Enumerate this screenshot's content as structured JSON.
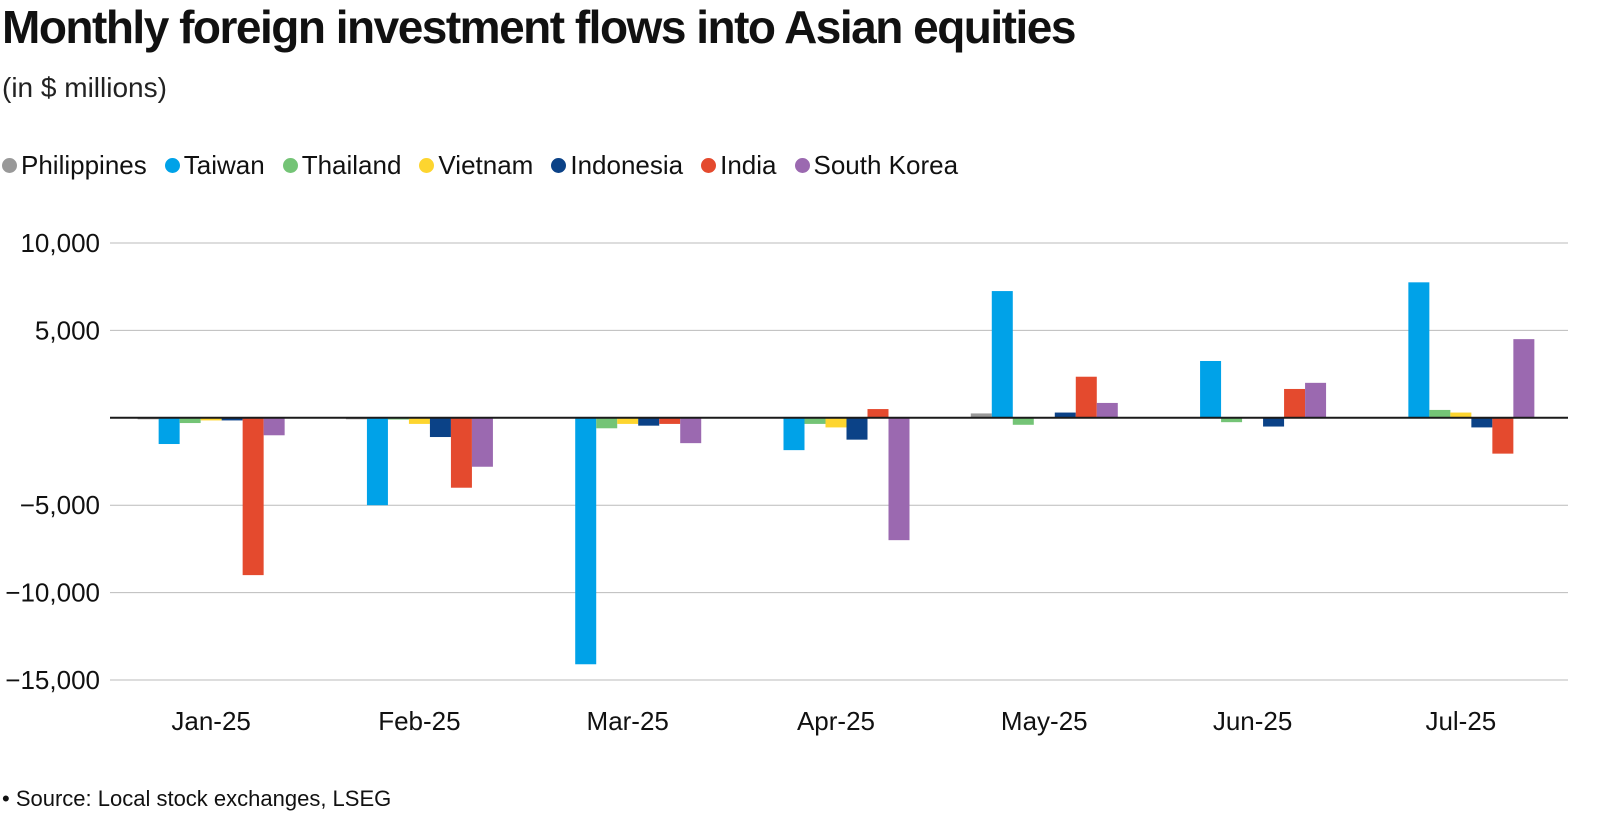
{
  "chart_data": {
    "type": "bar",
    "title": "Monthly foreign investment flows into Asian equities",
    "subtitle": "(in $ millions)",
    "categories": [
      "Jan-25",
      "Feb-25",
      "Mar-25",
      "Apr-25",
      "May-25",
      "Jun-25",
      "Jul-25"
    ],
    "ylim": [
      -15000,
      10000
    ],
    "yticks": [
      10000,
      5000,
      0,
      -5000,
      -10000,
      -15000
    ],
    "ytick_labels": [
      "10,000",
      "5,000",
      "",
      "−5,000",
      "−10,000",
      "−15,000"
    ],
    "grid": true,
    "legend_position": "top-left",
    "series": [
      {
        "name": "Philippines",
        "color": "#999999",
        "values": [
          -50,
          -50,
          0,
          0,
          250,
          0,
          0
        ]
      },
      {
        "name": "Taiwan",
        "color": "#00a2e8",
        "values": [
          -1500,
          -5000,
          -14100,
          -1850,
          7250,
          3250,
          7750
        ]
      },
      {
        "name": "Thailand",
        "color": "#74c476",
        "values": [
          -300,
          -100,
          -600,
          -350,
          -400,
          -250,
          450
        ]
      },
      {
        "name": "Vietnam",
        "color": "#fdd52f",
        "values": [
          -150,
          -350,
          -350,
          -550,
          0,
          0,
          300
        ]
      },
      {
        "name": "Indonesia",
        "color": "#0b4287",
        "values": [
          -150,
          -1100,
          -450,
          -1250,
          300,
          -500,
          -550
        ]
      },
      {
        "name": "India",
        "color": "#e44a2e",
        "values": [
          -9000,
          -4000,
          -350,
          500,
          2350,
          1650,
          -2050
        ]
      },
      {
        "name": "South Korea",
        "color": "#9b69b0",
        "values": [
          -1000,
          -2800,
          -1450,
          -7000,
          850,
          2000,
          4500
        ]
      }
    ]
  },
  "source": "• Source: Local stock exchanges, LSEG"
}
